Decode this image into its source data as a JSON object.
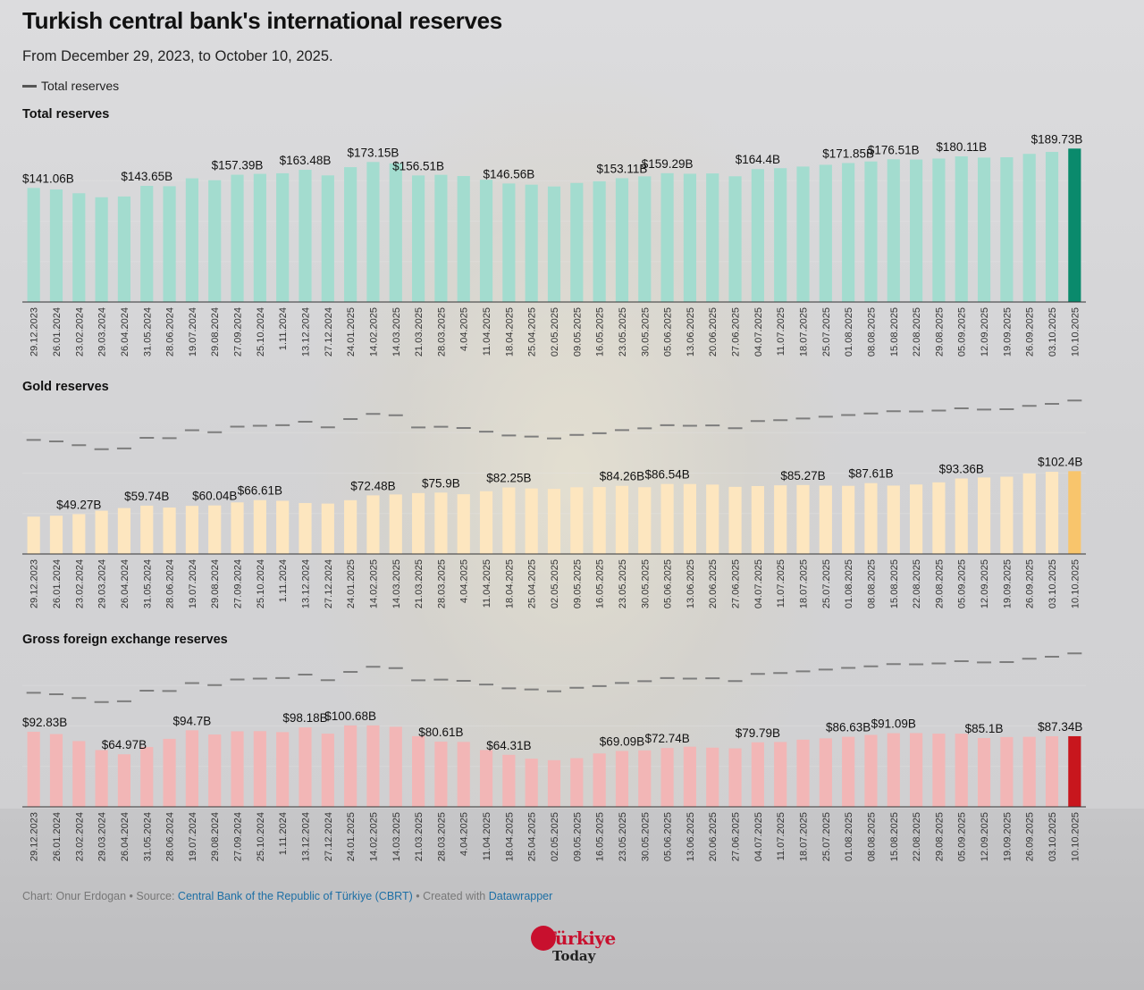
{
  "title": "Turkish central bank's international reserves",
  "subtitle": "From December 29, 2023, to October 10, 2025.",
  "legend": {
    "label": "Total reserves"
  },
  "footer": {
    "prefix": "Chart: Onur Erdogan • Source: ",
    "source_link": "Central Bank of the Republic of Türkiye (CBRT)",
    "middle": " • Created with ",
    "tool_link": "Datawrapper"
  },
  "logo": {
    "brand": "Türkiye",
    "sub": "Today"
  },
  "colors": {
    "total_bar": "#a3dccf",
    "total_last": "#0a8a6c",
    "gold_bar": "#fde6bf",
    "gold_last": "#f8c56c",
    "fx_bar": "#f2b6b6",
    "fx_last": "#c8161d",
    "reference_line": "#7d7d7d"
  },
  "chart_data": [
    {
      "type": "bar",
      "title": "Total reserves",
      "categories": [
        "29.12.2023",
        "26.01.2024",
        "23.02.2024",
        "29.03.2024",
        "26.04.2024",
        "31.05.2024",
        "28.06.2024",
        "19.07.2024",
        "29.08.2024",
        "27.09.2024",
        "25.10.2024",
        "1.11.2024",
        "13.12.2024",
        "27.12.2024",
        "24.01.2025",
        "14.02.2025",
        "14.03.2025",
        "21.03.2025",
        "28.03.2025",
        "4.04.2025",
        "11.04.2025",
        "18.04.2025",
        "25.04.2025",
        "02.05.2025",
        "09.05.2025",
        "16.05.2025",
        "23.05.2025",
        "30.05.2025",
        "05.06.2025",
        "13.06.2025",
        "20.06.2025",
        "27.06.2025",
        "04.07.2025",
        "11.07.2025",
        "18.07.2025",
        "25.07.2025",
        "01.08.2025",
        "08.08.2025",
        "15.08.2025",
        "22.08.2025",
        "29.08.2025",
        "05.09.2025",
        "12.09.2025",
        "19.09.2025",
        "26.09.2025",
        "03.10.2025",
        "10.10.2025"
      ],
      "values": [
        141.06,
        139.2,
        134.5,
        129.5,
        130.5,
        143.65,
        143.2,
        153.0,
        150.6,
        157.39,
        158.5,
        159.2,
        163.48,
        156.6,
        166.8,
        173.15,
        171.5,
        156.51,
        157.3,
        155.8,
        151.2,
        146.56,
        145.1,
        142.9,
        147.2,
        149.3,
        153.11,
        155.4,
        159.29,
        158.6,
        159.0,
        155.5,
        164.4,
        165.5,
        167.5,
        169.7,
        171.85,
        173.8,
        176.51,
        176.2,
        177.4,
        180.11,
        178.6,
        179.0,
        183.2,
        185.6,
        189.73
      ],
      "labels": {
        "0": "$141.06B",
        "5": "$143.65B",
        "9": "$157.39B",
        "12": "$163.48B",
        "15": "$173.15B",
        "17": "$156.51B",
        "21": "$146.56B",
        "26": "$153.11B",
        "28": "$159.29B",
        "32": "$164.4B",
        "36": "$171.85B",
        "38": "$176.51B",
        "41": "$180.11B",
        "46": "$189.73B"
      },
      "ylim": [
        0,
        200
      ]
    },
    {
      "type": "bar",
      "title": "Gold reserves",
      "categories": [
        "29.12.2023",
        "26.01.2024",
        "23.02.2024",
        "29.03.2024",
        "26.04.2024",
        "31.05.2024",
        "28.06.2024",
        "19.07.2024",
        "29.08.2024",
        "27.09.2024",
        "25.10.2024",
        "1.11.2024",
        "13.12.2024",
        "27.12.2024",
        "24.01.2025",
        "14.02.2025",
        "14.03.2025",
        "21.03.2025",
        "28.03.2025",
        "4.04.2025",
        "11.04.2025",
        "18.04.2025",
        "25.04.2025",
        "02.05.2025",
        "09.05.2025",
        "16.05.2025",
        "23.05.2025",
        "30.05.2025",
        "05.06.2025",
        "13.06.2025",
        "20.06.2025",
        "27.06.2025",
        "04.07.2025",
        "11.07.2025",
        "18.07.2025",
        "25.07.2025",
        "01.08.2025",
        "08.08.2025",
        "15.08.2025",
        "22.08.2025",
        "29.08.2025",
        "05.09.2025",
        "12.09.2025",
        "19.09.2025",
        "26.09.2025",
        "03.10.2025",
        "10.10.2025"
      ],
      "values": [
        46.2,
        47.3,
        49.27,
        53.5,
        56.8,
        59.74,
        57.4,
        59.5,
        60.04,
        63.8,
        66.61,
        65.8,
        63.0,
        62.3,
        66.5,
        72.48,
        73.6,
        75.3,
        75.9,
        73.9,
        77.6,
        82.25,
        81.0,
        80.5,
        82.5,
        82.8,
        84.26,
        82.6,
        86.54,
        86.5,
        85.8,
        83.0,
        84.0,
        84.9,
        85.27,
        84.6,
        84.3,
        87.61,
        84.6,
        85.9,
        88.6,
        93.36,
        94.6,
        95.6,
        99.6,
        101.6,
        102.4
      ],
      "labels": {
        "2": "$49.27B",
        "5": "$59.74B",
        "8": "$60.04B",
        "10": "$66.61B",
        "15": "$72.48B",
        "18": "$75.9B",
        "21": "$82.25B",
        "26": "$84.26B",
        "28": "$86.54B",
        "34": "$85.27B",
        "37": "$87.61B",
        "41": "$93.36B",
        "46": "$102.4B"
      },
      "reference_series": "Total reserves",
      "ylim": [
        0,
        200
      ]
    },
    {
      "type": "bar",
      "title": "Gross foreign exchange reserves",
      "categories": [
        "29.12.2023",
        "26.01.2024",
        "23.02.2024",
        "29.03.2024",
        "26.04.2024",
        "31.05.2024",
        "28.06.2024",
        "19.07.2024",
        "29.08.2024",
        "27.09.2024",
        "25.10.2024",
        "1.11.2024",
        "13.12.2024",
        "27.12.2024",
        "24.01.2025",
        "14.02.2025",
        "14.03.2025",
        "21.03.2025",
        "28.03.2025",
        "4.04.2025",
        "11.04.2025",
        "18.04.2025",
        "25.04.2025",
        "02.05.2025",
        "09.05.2025",
        "16.05.2025",
        "23.05.2025",
        "30.05.2025",
        "05.06.2025",
        "13.06.2025",
        "20.06.2025",
        "27.06.2025",
        "04.07.2025",
        "11.07.2025",
        "18.07.2025",
        "25.07.2025",
        "01.08.2025",
        "08.08.2025",
        "15.08.2025",
        "22.08.2025",
        "29.08.2025",
        "05.09.2025",
        "12.09.2025",
        "19.09.2025",
        "26.09.2025",
        "03.10.2025",
        "10.10.2025"
      ],
      "values": [
        92.83,
        90.0,
        81.3,
        70.2,
        64.97,
        74.0,
        84.1,
        94.7,
        89.4,
        93.4,
        93.6,
        92.4,
        98.18,
        90.5,
        100.68,
        100.7,
        99.0,
        87.4,
        80.61,
        80.3,
        70.3,
        64.31,
        59.6,
        57.7,
        60.2,
        66.0,
        69.09,
        69.8,
        72.74,
        74.4,
        73.2,
        72.3,
        79.79,
        80.2,
        83.1,
        84.7,
        86.63,
        89.0,
        91.09,
        91.2,
        90.5,
        90.5,
        85.1,
        86.3,
        86.6,
        87.3,
        87.34
      ],
      "labels": {
        "0": "$92.83B",
        "4": "$64.97B",
        "7": "$94.7B",
        "12": "$98.18B",
        "14": "$100.68B",
        "18": "$80.61B",
        "21": "$64.31B",
        "26": "$69.09B",
        "28": "$72.74B",
        "32": "$79.79B",
        "36": "$86.63B",
        "38": "$91.09B",
        "42": "$85.1B",
        "46": "$87.34B"
      },
      "reference_series": "Total reserves",
      "ylim": [
        0,
        200
      ]
    }
  ]
}
